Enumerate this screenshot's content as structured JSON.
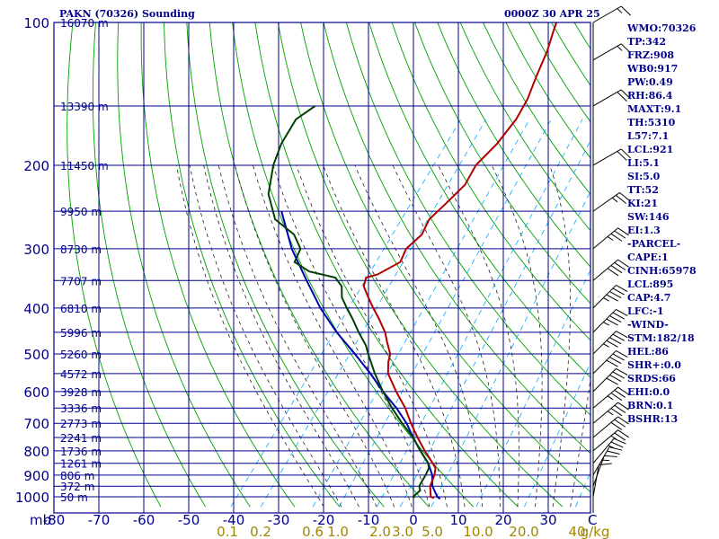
{
  "title_left": "PAKN (70326) Sounding",
  "title_right": "0000Z 30 APR 25",
  "sidebar": [
    "WMO:70326",
    "TP:342",
    "FRZ:908",
    "WB0:917",
    "PW:0.49",
    "RH:86.4",
    "MAXT:9.1",
    "TH:5310",
    "L57:7.1",
    "LCL:921",
    "LI:5.1",
    "SI:5.0",
    "TT:52",
    "KI:21",
    "SW:146",
    "EI:1.3",
    "-PARCEL-",
    "CAPE:1",
    "CINH:65978",
    "LCL:895",
    "CAP:4.7",
    "LFC:-1",
    "-WIND-",
    "STM:182/18",
    "HEL:86",
    "SHR+:0.0",
    "SRDS:66",
    "EHI:0.0",
    "BRN:0.1",
    "BSHR:13"
  ],
  "colors": {
    "grid": "#00008b",
    "dry_adiabat": "#00a000",
    "moist_adiabat": "#222222",
    "mixing_ratio": "#00aaff",
    "temperature": "#b00000",
    "dewpoint": "#004000",
    "parcel": "#0000b0",
    "mixing_label": "#a08800"
  },
  "chart_data": {
    "type": "skew-t",
    "y_axis_unit_label": "mb",
    "pressure_levels": [
      100,
      200,
      300,
      400,
      500,
      600,
      700,
      800,
      900,
      1000
    ],
    "pressure_ticks": [
      "100",
      "200",
      "300",
      "400",
      "500",
      "600",
      "700",
      "800",
      "900",
      "1000"
    ],
    "temperature_ticks": [
      "-80",
      "-70",
      "-60",
      "-50",
      "-40",
      "-30",
      "-20",
      "-10",
      "0",
      "10",
      "20",
      "30",
      "C"
    ],
    "mixing_ratio_ticks": [
      "0.1",
      "0.2",
      "0.6",
      "1.0",
      "2.0",
      "3.0",
      "5.0",
      "10.0",
      "20.0",
      "40",
      "g/kg"
    ],
    "mixing_ratio_values": [
      0.1,
      0.2,
      0.6,
      1.0,
      2.0,
      3.0,
      5.0,
      10.0,
      20.0,
      40.0
    ],
    "height_labels": [
      {
        "p": 100,
        "label": "16070 m"
      },
      {
        "p": 150,
        "label": "13390 m"
      },
      {
        "p": 200,
        "label": "11450 m"
      },
      {
        "p": 250,
        "label": "9950 m"
      },
      {
        "p": 300,
        "label": "8730 m"
      },
      {
        "p": 350,
        "label": "7707 m"
      },
      {
        "p": 400,
        "label": "6810 m"
      },
      {
        "p": 450,
        "label": "5996 m"
      },
      {
        "p": 500,
        "label": "5260 m"
      },
      {
        "p": 550,
        "label": "4572 m"
      },
      {
        "p": 600,
        "label": "3928 m"
      },
      {
        "p": 650,
        "label": "3336 m"
      },
      {
        "p": 700,
        "label": "2773 m"
      },
      {
        "p": 750,
        "label": "2241 m"
      },
      {
        "p": 800,
        "label": "1736 m"
      },
      {
        "p": 850,
        "label": "1261 m"
      },
      {
        "p": 900,
        "label": "806 m"
      },
      {
        "p": 950,
        "label": "372 m"
      },
      {
        "p": 1000,
        "label": "50 m"
      }
    ],
    "temperature_profile": [
      [
        1006,
        3.5
      ],
      [
        1000,
        2.5
      ],
      [
        950,
        0.5
      ],
      [
        900,
        -0.5
      ],
      [
        870,
        -1.5
      ],
      [
        850,
        -3
      ],
      [
        800,
        -7
      ],
      [
        750,
        -11
      ],
      [
        700,
        -15
      ],
      [
        650,
        -19
      ],
      [
        600,
        -24
      ],
      [
        550,
        -29
      ],
      [
        520,
        -31
      ],
      [
        500,
        -32
      ],
      [
        470,
        -35
      ],
      [
        450,
        -37
      ],
      [
        420,
        -41
      ],
      [
        400,
        -44
      ],
      [
        380,
        -47
      ],
      [
        360,
        -50
      ],
      [
        345,
        -51
      ],
      [
        340,
        -49
      ],
      [
        320,
        -46
      ],
      [
        300,
        -47
      ],
      [
        280,
        -46
      ],
      [
        260,
        -47
      ],
      [
        240,
        -46
      ],
      [
        220,
        -45
      ],
      [
        200,
        -46
      ],
      [
        180,
        -45
      ],
      [
        160,
        -45
      ],
      [
        145,
        -46
      ],
      [
        130,
        -48
      ],
      [
        115,
        -50
      ],
      [
        105,
        -52
      ],
      [
        100,
        -53
      ]
    ],
    "dewpoint_profile": [
      [
        1006,
        -1
      ],
      [
        1000,
        -1.5
      ],
      [
        970,
        -1
      ],
      [
        950,
        -2
      ],
      [
        900,
        -2.5
      ],
      [
        870,
        -3
      ],
      [
        850,
        -4
      ],
      [
        800,
        -8
      ],
      [
        750,
        -12
      ],
      [
        700,
        -17
      ],
      [
        650,
        -22
      ],
      [
        600,
        -27
      ],
      [
        550,
        -32
      ],
      [
        500,
        -37
      ],
      [
        480,
        -39
      ],
      [
        450,
        -43
      ],
      [
        420,
        -47
      ],
      [
        400,
        -50
      ],
      [
        380,
        -53
      ],
      [
        360,
        -55
      ],
      [
        345,
        -58
      ],
      [
        335,
        -65
      ],
      [
        320,
        -70
      ],
      [
        300,
        -71
      ],
      [
        280,
        -75
      ],
      [
        260,
        -82
      ],
      [
        230,
        -88
      ],
      [
        200,
        -92
      ],
      [
        180,
        -94
      ],
      [
        160,
        -95
      ],
      [
        150,
        -93
      ]
    ],
    "parcel_profile": [
      [
        1010,
        5
      ],
      [
        1000,
        4
      ],
      [
        950,
        1
      ],
      [
        900,
        -1
      ],
      [
        850,
        -4
      ],
      [
        800,
        -8
      ],
      [
        750,
        -12
      ],
      [
        700,
        -16
      ],
      [
        650,
        -21
      ],
      [
        600,
        -27
      ],
      [
        550,
        -33
      ],
      [
        500,
        -40
      ],
      [
        450,
        -48
      ],
      [
        400,
        -56
      ],
      [
        350,
        -64
      ],
      [
        300,
        -73
      ],
      [
        250,
        -82
      ]
    ],
    "wind_barbs": [
      {
        "p": 1000,
        "dir": 190,
        "spd": 10
      },
      {
        "p": 950,
        "dir": 200,
        "spd": 15
      },
      {
        "p": 900,
        "dir": 210,
        "spd": 20
      },
      {
        "p": 850,
        "dir": 220,
        "spd": 25
      },
      {
        "p": 800,
        "dir": 230,
        "spd": 25
      },
      {
        "p": 750,
        "dir": 230,
        "spd": 30
      },
      {
        "p": 700,
        "dir": 230,
        "spd": 35
      },
      {
        "p": 650,
        "dir": 230,
        "spd": 35
      },
      {
        "p": 600,
        "dir": 225,
        "spd": 40
      },
      {
        "p": 550,
        "dir": 225,
        "spd": 40
      },
      {
        "p": 500,
        "dir": 225,
        "spd": 45
      },
      {
        "p": 450,
        "dir": 225,
        "spd": 45
      },
      {
        "p": 400,
        "dir": 225,
        "spd": 45
      },
      {
        "p": 350,
        "dir": 230,
        "spd": 40
      },
      {
        "p": 300,
        "dir": 230,
        "spd": 35
      },
      {
        "p": 250,
        "dir": 235,
        "spd": 25
      },
      {
        "p": 200,
        "dir": 240,
        "spd": 20
      },
      {
        "p": 150,
        "dir": 240,
        "spd": 20
      },
      {
        "p": 120,
        "dir": 240,
        "spd": 15
      },
      {
        "p": 100,
        "dir": 240,
        "spd": 15
      }
    ]
  }
}
